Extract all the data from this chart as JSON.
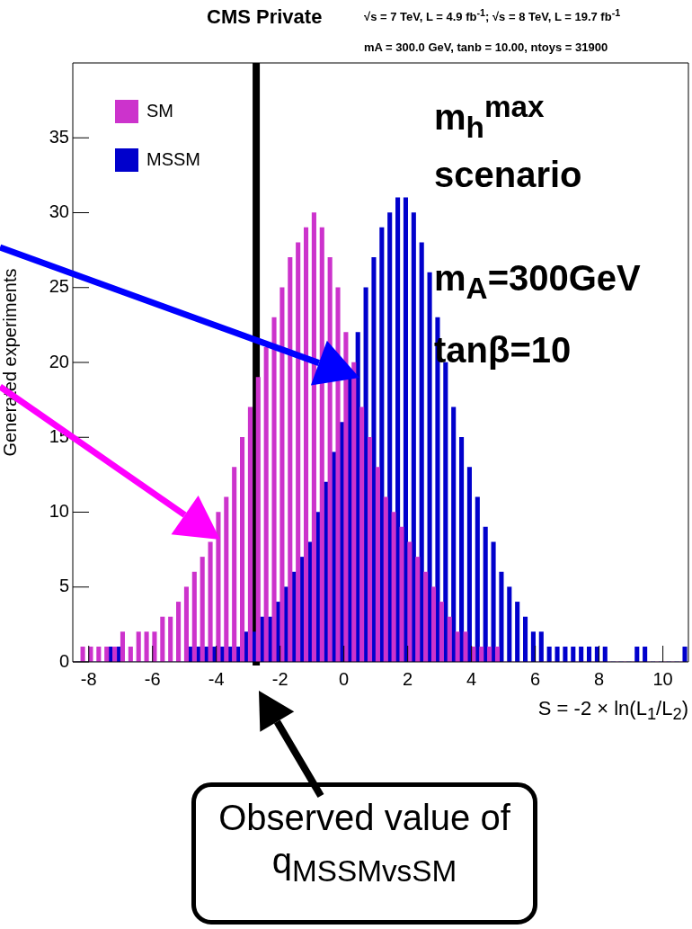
{
  "chart_data": {
    "type": "histogram",
    "title": "CMS Private",
    "subtitle": "√s = 7 TeV, L = 4.9 fb$^{-1}$; √s = 8 TeV, L = 19.7 fb$^{-1}$",
    "xlabel": "S = -2 × ln(L$_{1}$/L$_{2}$)",
    "ylabel": "Generated experiments",
    "bins": [
      -8.5,
      -8.25,
      -8,
      -7.75,
      -7.5,
      -7.25,
      -7,
      -6.75,
      -6.5,
      -6.25,
      -6,
      -5.75,
      -5.5,
      -5.25,
      -5,
      -4.75,
      -4.5,
      -4.25,
      -4,
      -3.75,
      -3.5,
      -3.25,
      -3,
      -2.75,
      -2.5,
      -2.25,
      -2,
      -1.75,
      -1.5,
      -1.25,
      -1,
      -0.75,
      -0.5,
      -0.25,
      0,
      0.25,
      0.5,
      0.75,
      1,
      1.25,
      1.5,
      1.75,
      2,
      2.25,
      2.5,
      2.75,
      3,
      3.25,
      3.5,
      3.75,
      4,
      4.25,
      4.5,
      4.75,
      5,
      5.25,
      5.5,
      5.75,
      6,
      6.25,
      6.5,
      6.75,
      7,
      7.25,
      7.5,
      7.75,
      8,
      8.25,
      8.5,
      8.75,
      9,
      9.25,
      9.5,
      9.75,
      10,
      10.25,
      10.5,
      10.75
    ],
    "series": [
      {
        "name": "SM",
        "color": "#cc33cc",
        "values": [
          0,
          1,
          1,
          1,
          1,
          1,
          2,
          1,
          2,
          2,
          2,
          3,
          3,
          4,
          5,
          6,
          7,
          8,
          10,
          11,
          13,
          15,
          17,
          19,
          21,
          23,
          25,
          27,
          28,
          29,
          30,
          29,
          27,
          25,
          22,
          20,
          17,
          15,
          13,
          11,
          10,
          9,
          8,
          7,
          6,
          5,
          4,
          3,
          2,
          2,
          1,
          1,
          1,
          1,
          0,
          0,
          0,
          0,
          0,
          0,
          0,
          0,
          0,
          0,
          0,
          0,
          0,
          0,
          0,
          0,
          0,
          0,
          0,
          0,
          0,
          0,
          0
        ]
      },
      {
        "name": "MSSM",
        "color": "#0000cc",
        "values": [
          0,
          0,
          0,
          0,
          1,
          1,
          0,
          0,
          0,
          0,
          0,
          0,
          0,
          0,
          1,
          1,
          1,
          1,
          1,
          1,
          1,
          2,
          2,
          3,
          3,
          4,
          5,
          6,
          7,
          8,
          10,
          12,
          14,
          16,
          19,
          22,
          25,
          27,
          29,
          30,
          31,
          31,
          30,
          28,
          26,
          23,
          20,
          17,
          15,
          13,
          11,
          9,
          8,
          6,
          5,
          4,
          3,
          2,
          2,
          1,
          1,
          1,
          1,
          1,
          1,
          1,
          1,
          0,
          0,
          0,
          1,
          1,
          0,
          0,
          0,
          0,
          1
        ]
      }
    ],
    "xlim": [
      -8.5,
      10.8
    ],
    "ylim": [
      0,
      40
    ],
    "xticks": [
      -8,
      -6,
      -4,
      -2,
      0,
      2,
      4,
      6,
      8,
      10
    ],
    "yticks": [
      0,
      5,
      10,
      15,
      20,
      25,
      30,
      35
    ],
    "grid": false,
    "legend": "top left",
    "ref_lines": [
      {
        "axis": "x",
        "value": -2.75,
        "color": "#000000"
      }
    ],
    "annotations": [
      "mA = 300.0 GeV,  tanb = 10.00,   ntoys = 31900",
      "m$_{h}$$^{max}$",
      "scenario",
      "m$_{A}$=300GeV",
      "tanβ=10",
      "Observed value of q$_{MSSMvsSM}$"
    ]
  }
}
